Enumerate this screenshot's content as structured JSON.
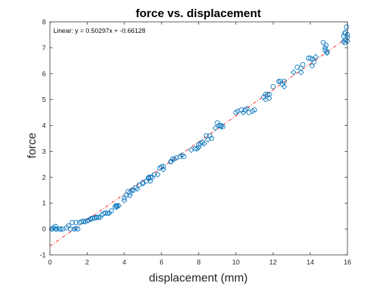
{
  "chart_data": {
    "type": "scatter",
    "title": "force vs. displacement",
    "xlabel": "displacement (mm)",
    "ylabel": "force",
    "xlim": [
      0,
      16
    ],
    "ylim": [
      -1,
      8
    ],
    "xticks": [
      "0",
      "2",
      "4",
      "6",
      "8",
      "10",
      "12",
      "14",
      "16"
    ],
    "yticks": [
      "-1",
      "0",
      "1",
      "2",
      "3",
      "4",
      "5",
      "6",
      "7",
      "8"
    ],
    "annotation": "Linear: y = 0.50297x + -0.66128",
    "fit": {
      "slope": 0.50297,
      "intercept": -0.66128,
      "color": "#ff0000",
      "style": "dash-dot"
    },
    "marker_color": "#0072bd",
    "circles": [
      [
        0.1,
        0.0
      ],
      [
        0.2,
        0.05
      ],
      [
        0.3,
        0.1
      ],
      [
        0.35,
        0.0
      ],
      [
        0.5,
        0.0
      ],
      [
        0.7,
        0.0
      ],
      [
        0.9,
        0.05
      ],
      [
        1.0,
        0.12
      ],
      [
        1.1,
        0.0
      ],
      [
        1.2,
        0.25
      ],
      [
        1.4,
        0.25
      ],
      [
        1.5,
        0.0
      ],
      [
        1.6,
        0.25
      ],
      [
        1.7,
        0.28
      ],
      [
        1.8,
        0.3
      ],
      [
        2.0,
        0.32
      ],
      [
        2.1,
        0.35
      ],
      [
        2.2,
        0.38
      ],
      [
        2.3,
        0.42
      ],
      [
        2.4,
        0.42
      ],
      [
        2.5,
        0.45
      ],
      [
        2.6,
        0.45
      ],
      [
        2.8,
        0.55
      ],
      [
        2.9,
        0.6
      ],
      [
        3.0,
        0.62
      ],
      [
        3.1,
        0.6
      ],
      [
        3.3,
        0.7
      ],
      [
        3.5,
        0.85
      ],
      [
        3.55,
        0.9
      ],
      [
        3.6,
        0.9
      ],
      [
        4.0,
        1.2
      ],
      [
        4.1,
        1.3
      ],
      [
        4.2,
        1.45
      ],
      [
        4.3,
        1.4
      ],
      [
        4.4,
        1.5
      ],
      [
        4.6,
        1.6
      ],
      [
        4.8,
        1.7
      ],
      [
        5.0,
        1.8
      ],
      [
        5.2,
        1.85
      ],
      [
        5.3,
        1.95
      ],
      [
        5.4,
        2.0
      ],
      [
        5.5,
        2.0
      ],
      [
        5.6,
        2.1
      ],
      [
        5.9,
        2.35
      ],
      [
        6.0,
        2.4
      ],
      [
        6.1,
        2.42
      ],
      [
        6.5,
        2.6
      ],
      [
        6.6,
        2.7
      ],
      [
        6.8,
        2.75
      ],
      [
        7.0,
        2.8
      ],
      [
        7.2,
        2.8
      ],
      [
        7.8,
        3.1
      ],
      [
        8.0,
        3.25
      ],
      [
        8.1,
        3.3
      ],
      [
        8.2,
        3.35
      ],
      [
        8.4,
        3.6
      ],
      [
        8.6,
        3.6
      ],
      [
        8.7,
        3.5
      ],
      [
        9.0,
        4.1
      ],
      [
        9.1,
        4.0
      ],
      [
        9.2,
        4.0
      ],
      [
        9.3,
        3.95
      ],
      [
        10.0,
        4.5
      ],
      [
        10.3,
        4.6
      ],
      [
        10.5,
        4.6
      ],
      [
        10.7,
        4.5
      ],
      [
        11.0,
        4.6
      ],
      [
        11.5,
        5.1
      ],
      [
        11.6,
        5.2
      ],
      [
        11.7,
        5.2
      ],
      [
        11.8,
        5.2
      ],
      [
        12.0,
        5.5
      ],
      [
        12.4,
        5.7
      ],
      [
        12.5,
        5.6
      ],
      [
        12.6,
        5.7
      ],
      [
        13.3,
        6.25
      ],
      [
        13.5,
        6.2
      ],
      [
        13.6,
        6.35
      ],
      [
        13.9,
        6.6
      ],
      [
        14.0,
        6.6
      ],
      [
        14.1,
        6.55
      ],
      [
        14.2,
        6.45
      ],
      [
        14.7,
        7.2
      ],
      [
        14.8,
        6.9
      ],
      [
        14.85,
        7.1
      ],
      [
        14.9,
        6.85
      ],
      [
        15.8,
        7.45
      ],
      [
        15.85,
        7.55
      ],
      [
        15.9,
        7.6
      ],
      [
        15.95,
        7.8
      ],
      [
        16.0,
        7.4
      ],
      [
        15.9,
        7.3
      ],
      [
        15.85,
        7.2
      ],
      [
        16.0,
        7.5
      ]
    ],
    "diamonds": [
      [
        0.1,
        0.0
      ],
      [
        0.3,
        0.0
      ],
      [
        0.6,
        0.0
      ],
      [
        1.3,
        0.0
      ],
      [
        1.4,
        0.02
      ],
      [
        1.9,
        0.28
      ],
      [
        2.2,
        0.4
      ],
      [
        2.5,
        0.45
      ],
      [
        2.7,
        0.45
      ],
      [
        3.2,
        0.62
      ],
      [
        3.6,
        0.85
      ],
      [
        3.7,
        0.9
      ],
      [
        4.0,
        1.1
      ],
      [
        4.3,
        1.3
      ],
      [
        4.5,
        1.5
      ],
      [
        4.7,
        1.55
      ],
      [
        5.0,
        1.75
      ],
      [
        5.3,
        2.0
      ],
      [
        5.4,
        1.85
      ],
      [
        5.8,
        2.1
      ],
      [
        6.1,
        2.3
      ],
      [
        6.5,
        2.6
      ],
      [
        6.7,
        2.7
      ],
      [
        7.1,
        2.85
      ],
      [
        7.6,
        3.05
      ],
      [
        7.9,
        3.1
      ],
      [
        8.0,
        3.15
      ],
      [
        8.3,
        3.3
      ],
      [
        8.5,
        3.45
      ],
      [
        8.9,
        3.9
      ],
      [
        9.2,
        3.95
      ],
      [
        10.1,
        4.55
      ],
      [
        10.4,
        4.5
      ],
      [
        10.6,
        4.65
      ],
      [
        10.9,
        4.55
      ],
      [
        11.6,
        5.0
      ],
      [
        11.8,
        5.05
      ],
      [
        12.3,
        5.7
      ],
      [
        12.6,
        5.5
      ],
      [
        13.1,
        6.05
      ],
      [
        13.5,
        6.05
      ],
      [
        14.1,
        6.3
      ],
      [
        14.3,
        6.65
      ],
      [
        14.8,
        7.0
      ],
      [
        14.9,
        6.8
      ],
      [
        15.8,
        7.25
      ],
      [
        16.0,
        7.25
      ]
    ]
  }
}
